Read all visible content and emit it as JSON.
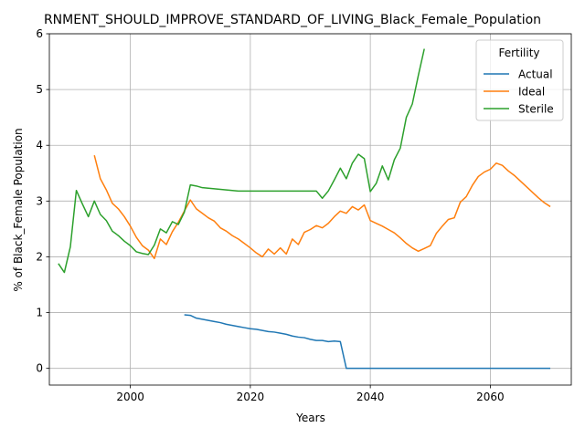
{
  "chart_data": {
    "type": "line",
    "title": "RNMENT_SHOULD_IMPROVE_STANDARD_OF_LIVING_Black_Female_Population",
    "xlabel": "Years",
    "ylabel": "% of Black_Female Population",
    "xlim": [
      1986.5,
      2073.5
    ],
    "ylim": [
      -0.3,
      6.0
    ],
    "xticks": [
      2000,
      2020,
      2040,
      2060
    ],
    "yticks": [
      0,
      1,
      2,
      3,
      4,
      5,
      6
    ],
    "grid": true,
    "legend": {
      "title": "Fertility",
      "placement": "top-right"
    },
    "series": [
      {
        "name": "Actual",
        "color": "#1f77b4",
        "points": [
          [
            2009,
            0.96
          ],
          [
            2010,
            0.95
          ],
          [
            2011,
            0.9
          ],
          [
            2012,
            0.88
          ],
          [
            2013,
            0.86
          ],
          [
            2014,
            0.84
          ],
          [
            2015,
            0.82
          ],
          [
            2016,
            0.79
          ],
          [
            2017,
            0.77
          ],
          [
            2018,
            0.75
          ],
          [
            2019,
            0.73
          ],
          [
            2020,
            0.71
          ],
          [
            2021,
            0.7
          ],
          [
            2022,
            0.68
          ],
          [
            2023,
            0.66
          ],
          [
            2024,
            0.65
          ],
          [
            2025,
            0.63
          ],
          [
            2026,
            0.61
          ],
          [
            2027,
            0.58
          ],
          [
            2028,
            0.56
          ],
          [
            2029,
            0.55
          ],
          [
            2030,
            0.52
          ],
          [
            2031,
            0.5
          ],
          [
            2032,
            0.5
          ],
          [
            2033,
            0.48
          ],
          [
            2034,
            0.49
          ],
          [
            2035,
            0.48
          ],
          [
            2036,
            0.0
          ],
          [
            2040,
            0.0
          ],
          [
            2050,
            0.0
          ],
          [
            2060,
            0.0
          ],
          [
            2070,
            0.0
          ]
        ]
      },
      {
        "name": "Ideal",
        "color": "#ff7f0e",
        "points": [
          [
            1994,
            3.82
          ],
          [
            1995,
            3.4
          ],
          [
            1996,
            3.2
          ],
          [
            1997,
            2.96
          ],
          [
            1998,
            2.86
          ],
          [
            1999,
            2.72
          ],
          [
            2000,
            2.55
          ],
          [
            2001,
            2.35
          ],
          [
            2002,
            2.2
          ],
          [
            2003,
            2.12
          ],
          [
            2004,
            1.97
          ],
          [
            2005,
            2.32
          ],
          [
            2006,
            2.22
          ],
          [
            2007,
            2.45
          ],
          [
            2008,
            2.62
          ],
          [
            2009,
            2.82
          ],
          [
            2010,
            3.02
          ],
          [
            2011,
            2.86
          ],
          [
            2012,
            2.78
          ],
          [
            2013,
            2.7
          ],
          [
            2014,
            2.64
          ],
          [
            2015,
            2.52
          ],
          [
            2016,
            2.46
          ],
          [
            2017,
            2.38
          ],
          [
            2018,
            2.32
          ],
          [
            2019,
            2.24
          ],
          [
            2020,
            2.16
          ],
          [
            2021,
            2.07
          ],
          [
            2022,
            2.0
          ],
          [
            2023,
            2.14
          ],
          [
            2024,
            2.05
          ],
          [
            2025,
            2.16
          ],
          [
            2026,
            2.05
          ],
          [
            2027,
            2.32
          ],
          [
            2028,
            2.22
          ],
          [
            2029,
            2.44
          ],
          [
            2030,
            2.49
          ],
          [
            2031,
            2.56
          ],
          [
            2032,
            2.52
          ],
          [
            2033,
            2.6
          ],
          [
            2034,
            2.72
          ],
          [
            2035,
            2.82
          ],
          [
            2036,
            2.78
          ],
          [
            2037,
            2.9
          ],
          [
            2038,
            2.84
          ],
          [
            2039,
            2.93
          ],
          [
            2040,
            2.65
          ],
          [
            2041,
            2.6
          ],
          [
            2042,
            2.55
          ],
          [
            2043,
            2.49
          ],
          [
            2044,
            2.43
          ],
          [
            2045,
            2.34
          ],
          [
            2046,
            2.24
          ],
          [
            2047,
            2.16
          ],
          [
            2048,
            2.1
          ],
          [
            2049,
            2.15
          ],
          [
            2050,
            2.2
          ],
          [
            2051,
            2.42
          ],
          [
            2052,
            2.55
          ],
          [
            2053,
            2.67
          ],
          [
            2054,
            2.7
          ],
          [
            2055,
            2.98
          ],
          [
            2056,
            3.08
          ],
          [
            2057,
            3.28
          ],
          [
            2058,
            3.44
          ],
          [
            2059,
            3.52
          ],
          [
            2060,
            3.57
          ],
          [
            2061,
            3.68
          ],
          [
            2062,
            3.64
          ],
          [
            2063,
            3.54
          ],
          [
            2064,
            3.46
          ],
          [
            2065,
            3.36
          ],
          [
            2066,
            3.26
          ],
          [
            2067,
            3.16
          ],
          [
            2068,
            3.06
          ],
          [
            2069,
            2.97
          ],
          [
            2070,
            2.9
          ]
        ]
      },
      {
        "name": "Sterile",
        "color": "#2ca02c",
        "points": [
          [
            1988,
            1.88
          ],
          [
            1989,
            1.72
          ],
          [
            1990,
            2.18
          ],
          [
            1991,
            3.19
          ],
          [
            1992,
            2.95
          ],
          [
            1993,
            2.72
          ],
          [
            1994,
            3.0
          ],
          [
            1995,
            2.76
          ],
          [
            1996,
            2.65
          ],
          [
            1997,
            2.46
          ],
          [
            1998,
            2.38
          ],
          [
            1999,
            2.28
          ],
          [
            2000,
            2.2
          ],
          [
            2001,
            2.09
          ],
          [
            2002,
            2.06
          ],
          [
            2003,
            2.04
          ],
          [
            2004,
            2.21
          ],
          [
            2005,
            2.5
          ],
          [
            2006,
            2.43
          ],
          [
            2007,
            2.63
          ],
          [
            2008,
            2.58
          ],
          [
            2009,
            2.8
          ],
          [
            2010,
            3.29
          ],
          [
            2011,
            3.27
          ],
          [
            2012,
            3.24
          ],
          [
            2013,
            3.23
          ],
          [
            2014,
            3.22
          ],
          [
            2015,
            3.21
          ],
          [
            2016,
            3.2
          ],
          [
            2017,
            3.19
          ],
          [
            2018,
            3.18
          ],
          [
            2020,
            3.18
          ],
          [
            2025,
            3.18
          ],
          [
            2030,
            3.18
          ],
          [
            2031,
            3.18
          ],
          [
            2032,
            3.05
          ],
          [
            2033,
            3.18
          ],
          [
            2034,
            3.38
          ],
          [
            2035,
            3.59
          ],
          [
            2036,
            3.4
          ],
          [
            2037,
            3.68
          ],
          [
            2038,
            3.84
          ],
          [
            2039,
            3.76
          ],
          [
            2040,
            3.17
          ],
          [
            2041,
            3.32
          ],
          [
            2042,
            3.63
          ],
          [
            2043,
            3.38
          ],
          [
            2044,
            3.74
          ],
          [
            2045,
            3.95
          ],
          [
            2046,
            4.5
          ],
          [
            2047,
            4.74
          ],
          [
            2048,
            5.25
          ],
          [
            2049,
            5.73
          ]
        ]
      }
    ]
  }
}
